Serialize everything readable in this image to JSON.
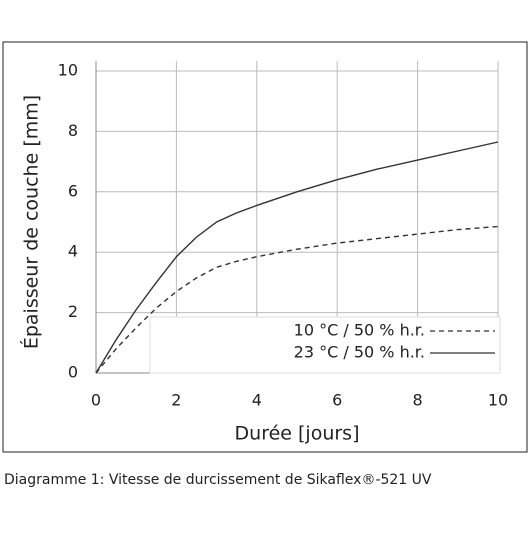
{
  "chart_data": {
    "type": "line",
    "xlabel": "Durée [jours]",
    "ylabel": "Épaisseur de couche [mm]",
    "caption": "Diagramme 1: Vitesse de durcissement de Sikaflex®-521 UV",
    "x": [
      0,
      0.5,
      1,
      1.5,
      2,
      2.5,
      3,
      3.5,
      4,
      5,
      6,
      7,
      8,
      9,
      10
    ],
    "series": [
      {
        "name": "10 °C / 50 % h.r.",
        "color": "#333333",
        "dash": true,
        "values": [
          0,
          0.8,
          1.5,
          2.15,
          2.7,
          3.15,
          3.5,
          3.7,
          3.85,
          4.1,
          4.3,
          4.45,
          4.6,
          4.75,
          4.85
        ]
      },
      {
        "name": "23 °C / 50 % h.r.",
        "color": "#333333",
        "dash": false,
        "values": [
          0,
          1.1,
          2.1,
          3.0,
          3.85,
          4.5,
          5.0,
          5.3,
          5.55,
          6.0,
          6.4,
          6.75,
          7.05,
          7.35,
          7.65
        ]
      }
    ],
    "xlim": [
      0,
      10
    ],
    "xticks": [
      0,
      2,
      4,
      6,
      8,
      10
    ],
    "ylim": [
      0,
      10
    ],
    "yticks": [
      0,
      2,
      4,
      6,
      8,
      10
    ],
    "grid": true,
    "legend": "lower right"
  }
}
